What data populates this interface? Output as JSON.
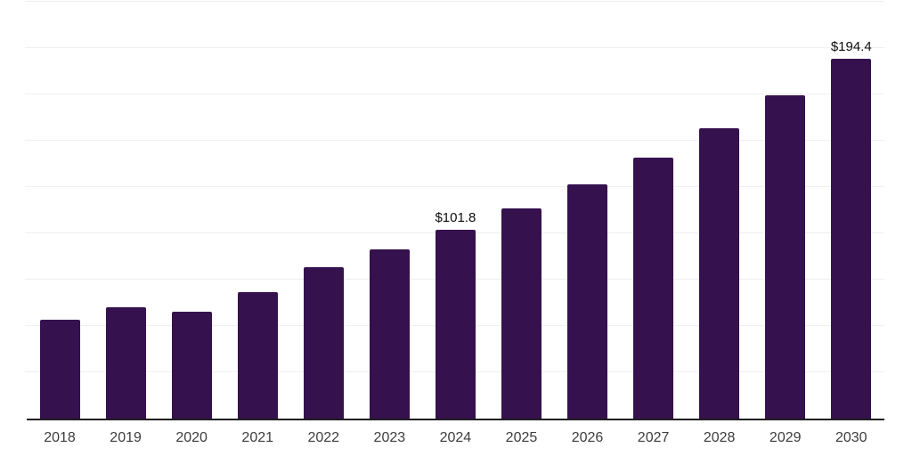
{
  "page": {
    "background": "#ffffff"
  },
  "chart_data": {
    "type": "bar",
    "title": "",
    "xlabel": "",
    "ylabel": "",
    "categories": [
      "2018",
      "2019",
      "2020",
      "2021",
      "2022",
      "2023",
      "2024",
      "2025",
      "2026",
      "2027",
      "2028",
      "2029",
      "2030"
    ],
    "values": [
      53.2,
      60.1,
      57.8,
      68.4,
      81.9,
      91.4,
      101.8,
      113.4,
      126.3,
      140.7,
      156.7,
      174.6,
      194.4
    ],
    "data_labels": {
      "2024": "$101.8",
      "2030": "$194.4"
    },
    "ylim": [
      0,
      225
    ],
    "gridline_interval": 25,
    "grid": true,
    "legend": false,
    "bar_color": "#35114E",
    "axis_color": "#1f1f1f",
    "grid_color": "#f0f0f0",
    "tick_label_color": "#3d3d3d",
    "data_label_color": "#0d0d0d"
  }
}
